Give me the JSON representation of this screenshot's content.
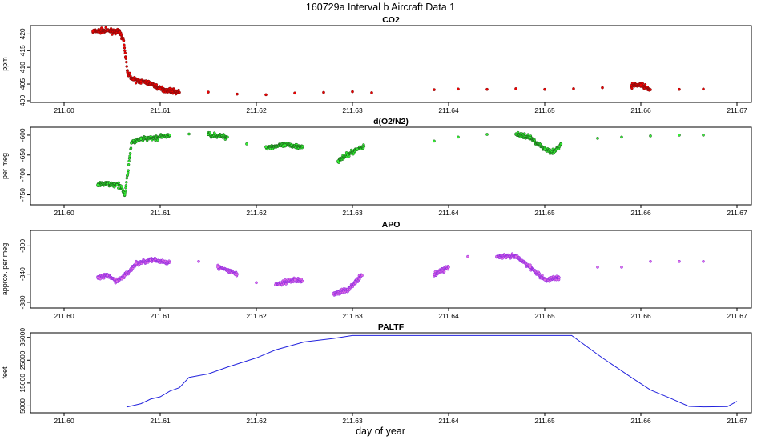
{
  "figure": {
    "title": "160729a   Interval b Aircraft Data 1",
    "xlabel": "day of year"
  },
  "colors": {
    "co2": "#ee0000",
    "co2_edge": "#7a0f0f",
    "o2n2": "#33ee33",
    "o2n2_edge": "#1b5e1b",
    "apo": "#e26be2",
    "apo_edge": "#8a2be2",
    "paltf": "#2222dd"
  },
  "chart_data": [
    {
      "type": "scatter",
      "title": "CO2",
      "ylabel": "ppm",
      "xlim": [
        211.5965,
        211.6715
      ],
      "ylim": [
        399.5,
        422.5
      ],
      "x_ticks": [
        "211.60",
        "211.61",
        "211.62",
        "211.63",
        "211.64",
        "211.65",
        "211.66",
        "211.67"
      ],
      "y_ticks": [
        "400",
        "405",
        "410",
        "415",
        "420"
      ],
      "grid": false,
      "series": [
        {
          "points": [
            [
              211.603,
              420.8
            ],
            [
              211.6045,
              421.0
            ],
            [
              211.6058,
              420.5
            ],
            [
              211.6062,
              418.0
            ],
            [
              211.6064,
              413.0
            ],
            [
              211.6066,
              408.5
            ],
            [
              211.6072,
              406.3
            ],
            [
              211.608,
              405.8
            ],
            [
              211.609,
              405.2
            ],
            [
              211.61,
              403.6
            ],
            [
              211.612,
              402.5
            ],
            [
              211.615,
              402.6
            ],
            [
              211.618,
              402.0
            ],
            [
              211.621,
              401.8
            ],
            [
              211.624,
              402.3
            ],
            [
              211.627,
              402.5
            ],
            [
              211.63,
              402.7
            ],
            [
              211.632,
              402.4
            ],
            [
              211.6385,
              403.3
            ],
            [
              211.641,
              403.5
            ],
            [
              211.644,
              403.4
            ],
            [
              211.647,
              403.6
            ],
            [
              211.65,
              403.4
            ],
            [
              211.653,
              403.6
            ],
            [
              211.656,
              403.9
            ],
            [
              211.659,
              404.5
            ],
            [
              211.66,
              404.8
            ],
            [
              211.661,
              403.3
            ],
            [
              211.664,
              403.4
            ],
            [
              211.6665,
              403.5
            ]
          ]
        }
      ]
    },
    {
      "type": "scatter",
      "title": "d(O2/N2)",
      "ylabel": "per meg",
      "xlim": [
        211.5965,
        211.6715
      ],
      "ylim": [
        -775,
        -580
      ],
      "x_ticks": [
        "211.60",
        "211.61",
        "211.62",
        "211.63",
        "211.64",
        "211.65",
        "211.66",
        "211.67"
      ],
      "y_ticks": [
        "-600",
        "-650",
        "-700",
        "-750"
      ],
      "grid": false,
      "series": [
        {
          "points": [
            [
              211.6035,
              -725
            ],
            [
              211.6045,
              -722
            ],
            [
              211.6055,
              -725
            ],
            [
              211.606,
              -730
            ],
            [
              211.6063,
              -750
            ],
            [
              211.6066,
              -700
            ],
            [
              211.6068,
              -658
            ],
            [
              211.607,
              -620
            ],
            [
              211.608,
              -610
            ],
            [
              211.6095,
              -607
            ],
            [
              211.611,
              -600
            ],
            [
              211.613,
              -597
            ],
            [
              211.615,
              -598
            ],
            [
              211.617,
              -605
            ],
            [
              211.619,
              -622
            ],
            [
              211.621,
              -630
            ],
            [
              211.623,
              -625
            ],
            [
              211.6248,
              -628
            ],
            [
              211.6285,
              -665
            ],
            [
              211.6295,
              -650
            ],
            [
              211.6305,
              -635
            ],
            [
              211.6312,
              -628
            ],
            [
              211.6385,
              -615
            ],
            [
              211.641,
              -605
            ],
            [
              211.644,
              -598
            ],
            [
              211.647,
              -597
            ],
            [
              211.6485,
              -606
            ],
            [
              211.65,
              -635
            ],
            [
              211.651,
              -642
            ],
            [
              211.6517,
              -622
            ],
            [
              211.6555,
              -608
            ],
            [
              211.658,
              -605
            ],
            [
              211.661,
              -602
            ],
            [
              211.664,
              -600
            ],
            [
              211.6665,
              -600
            ]
          ]
        }
      ]
    },
    {
      "type": "scatter",
      "title": "APO",
      "ylabel": "approx. per meg",
      "xlim": [
        211.5965,
        211.6715
      ],
      "ylim": [
        -388,
        -278
      ],
      "x_ticks": [
        "211.60",
        "211.61",
        "211.62",
        "211.63",
        "211.64",
        "211.65",
        "211.66",
        "211.67"
      ],
      "y_ticks": [
        "-300",
        "-340",
        "-380"
      ],
      "grid": false,
      "series": [
        {
          "points": [
            [
              211.6035,
              -345
            ],
            [
              211.6045,
              -342
            ],
            [
              211.6055,
              -350
            ],
            [
              211.6065,
              -340
            ],
            [
              211.6075,
              -325
            ],
            [
              211.609,
              -320
            ],
            [
              211.611,
              -323
            ],
            [
              211.614,
              -322
            ],
            [
              211.616,
              -330
            ],
            [
              211.618,
              -340
            ],
            [
              211.62,
              -352
            ],
            [
              211.622,
              -355
            ],
            [
              211.624,
              -348
            ],
            [
              211.6248,
              -350
            ],
            [
              211.628,
              -368
            ],
            [
              211.6295,
              -362
            ],
            [
              211.631,
              -342
            ],
            [
              211.6385,
              -340
            ],
            [
              211.64,
              -330
            ],
            [
              211.642,
              -315
            ],
            [
              211.645,
              -315
            ],
            [
              211.647,
              -315
            ],
            [
              211.6485,
              -330
            ],
            [
              211.65,
              -348
            ],
            [
              211.6515,
              -345
            ],
            [
              211.6555,
              -330
            ],
            [
              211.658,
              -330
            ],
            [
              211.661,
              -322
            ],
            [
              211.664,
              -322
            ],
            [
              211.6665,
              -322
            ]
          ]
        }
      ]
    },
    {
      "type": "line",
      "title": "PALTF",
      "ylabel": "feet",
      "xlim": [
        211.5965,
        211.6715
      ],
      "ylim": [
        2000,
        37000
      ],
      "x_ticks": [
        "211.60",
        "211.61",
        "211.62",
        "211.63",
        "211.64",
        "211.65",
        "211.66",
        "211.67"
      ],
      "y_ticks": [
        "5000",
        "15000",
        "25000",
        "35000"
      ],
      "grid": false,
      "series": [
        {
          "points": [
            [
              211.6065,
              4500
            ],
            [
              211.608,
              6000
            ],
            [
              211.609,
              8000
            ],
            [
              211.61,
              9000
            ],
            [
              211.611,
              11500
            ],
            [
              211.612,
              13000
            ],
            [
              211.613,
              17500
            ],
            [
              211.615,
              19000
            ],
            [
              211.617,
              22000
            ],
            [
              211.62,
              26000
            ],
            [
              211.622,
              29500
            ],
            [
              211.625,
              33000
            ],
            [
              211.628,
              34500
            ],
            [
              211.63,
              35800
            ],
            [
              211.635,
              35800
            ],
            [
              211.645,
              35800
            ],
            [
              211.6528,
              35800
            ],
            [
              211.656,
              26000
            ],
            [
              211.659,
              17500
            ],
            [
              211.661,
              12000
            ],
            [
              211.663,
              8500
            ],
            [
              211.665,
              4800
            ],
            [
              211.6665,
              4600
            ],
            [
              211.669,
              4700
            ],
            [
              211.67,
              7000
            ]
          ]
        }
      ]
    }
  ]
}
